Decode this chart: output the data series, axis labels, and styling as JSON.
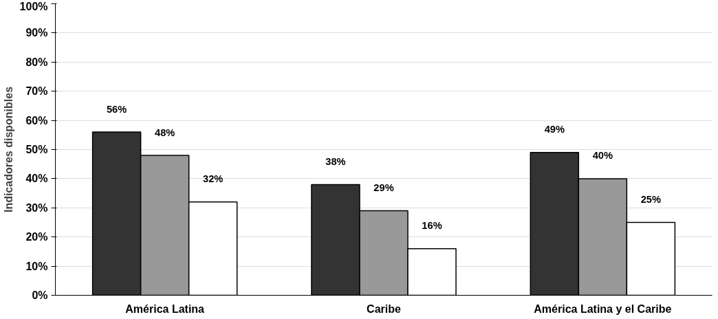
{
  "chart_data": {
    "type": "bar",
    "ylabel": "Indicadores disponibles",
    "categories": [
      "América Latina",
      "Caribe",
      "América Latina y el Caribe"
    ],
    "series": [
      {
        "color": "#333333",
        "values": [
          56,
          38,
          49
        ],
        "value_labels": [
          "56%",
          "38%",
          "49%"
        ]
      },
      {
        "color": "#999999",
        "values": [
          48,
          29,
          40
        ],
        "value_labels": [
          "48%",
          "29%",
          "40%"
        ]
      },
      {
        "color": "#ffffff",
        "values": [
          32,
          16,
          25
        ],
        "value_labels": [
          "32%",
          "16%",
          "25%"
        ]
      }
    ],
    "ylim": [
      0,
      100
    ],
    "yticks": [
      {
        "value": 0,
        "label": "0%"
      },
      {
        "value": 10,
        "label": "10%"
      },
      {
        "value": 20,
        "label": "20%"
      },
      {
        "value": 30,
        "label": "30%"
      },
      {
        "value": 40,
        "label": "40%"
      },
      {
        "value": 50,
        "label": "50%"
      },
      {
        "value": 60,
        "label": "60%"
      },
      {
        "value": 70,
        "label": "70%"
      },
      {
        "value": 80,
        "label": "80%"
      },
      {
        "value": 90,
        "label": "90%"
      },
      {
        "value": 100,
        "label": "100%"
      }
    ],
    "grid": "y"
  }
}
